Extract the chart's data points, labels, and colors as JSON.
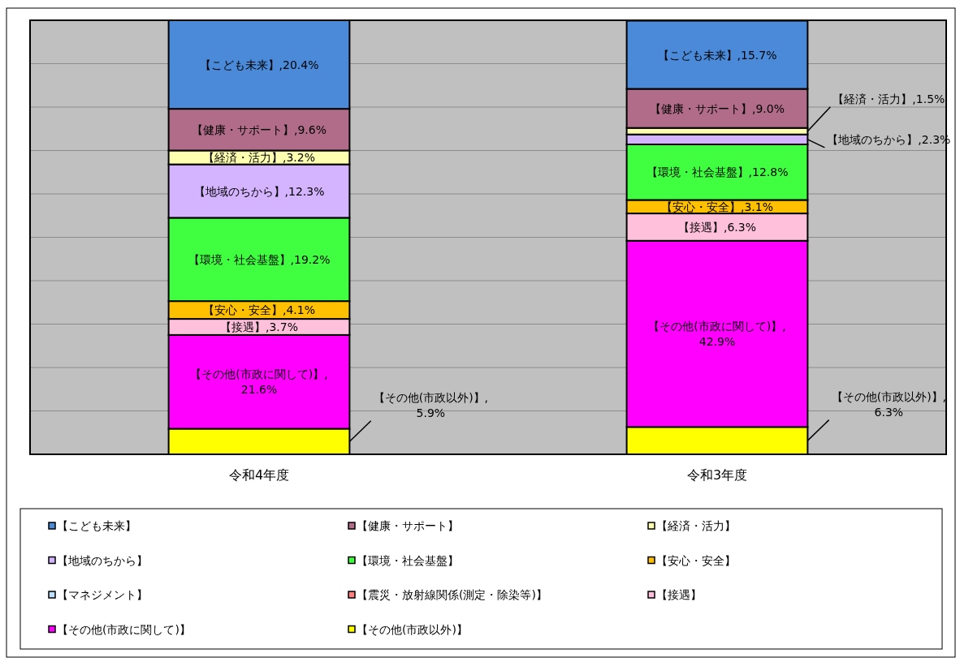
{
  "chart_data": {
    "type": "bar",
    "stacked": true,
    "categories": [
      "令和4年度",
      "令和3年度"
    ],
    "ylim": [
      0,
      100
    ],
    "yticks": [
      {
        "value": 0,
        "label": null
      },
      {
        "value": 10,
        "label": null
      },
      {
        "value": 20,
        "label": null
      },
      {
        "value": 30,
        "label": null
      },
      {
        "value": 40,
        "label": null
      },
      {
        "value": 50,
        "label": null
      },
      {
        "value": 60,
        "label": null
      },
      {
        "value": 70,
        "label": null
      },
      {
        "value": 80,
        "label": null
      },
      {
        "value": 90,
        "label": null
      },
      {
        "value": 100,
        "label": null
      }
    ],
    "grid": "y",
    "tick_labels": "x",
    "legend": "bottom",
    "series": [
      {
        "name": "【その他(市政以外)】",
        "color": "#ffff00",
        "values": [
          5.9,
          6.3
        ],
        "value_labels": [
          "【その他(市政以外)】,5.9%",
          "【その他(市政以外)】,6.3%"
        ]
      },
      {
        "name": "【その他(市政に関して)】",
        "color": "#ff00ff",
        "values": [
          21.6,
          42.9
        ],
        "value_labels": [
          "【その他(市政に関して)】,21.6%",
          "【その他(市政に関して)】,42.9%"
        ]
      },
      {
        "name": "【接遇】",
        "color": "#ffc0dc",
        "values": [
          3.7,
          6.3
        ],
        "value_labels": [
          "【接遇】,3.7%",
          "【接遇】,6.3%"
        ]
      },
      {
        "name": "【震災・放射線関係(測定・除染等)】",
        "color": "#ff8080",
        "values": [
          null,
          null
        ]
      },
      {
        "name": "【マネジメント】",
        "color": "#c0e0ff",
        "values": [
          null,
          null
        ]
      },
      {
        "name": "【安心・安全】",
        "color": "#ffc000",
        "values": [
          4.1,
          3.1
        ],
        "value_labels": [
          "【安心・安全】,4.1%",
          "【安心・安全】,3.1%"
        ]
      },
      {
        "name": "【環境・社会基盤】",
        "color": "#40ff40",
        "values": [
          19.2,
          12.8
        ],
        "value_labels": [
          "【環境・社会基盤】,19.2%",
          "【環境・社会基盤】,12.8%"
        ]
      },
      {
        "name": "【地域のちから】",
        "color": "#d4b4ff",
        "values": [
          12.3,
          2.3
        ],
        "value_labels": [
          "【地域のちから】,12.3%",
          "【地域のちから】,2.3%"
        ]
      },
      {
        "name": "【経済・活力】",
        "color": "#ffffb0",
        "values": [
          3.2,
          1.5
        ],
        "value_labels": [
          "【経済・活力】,3.2%",
          "【経済・活力】,1.5%"
        ]
      },
      {
        "name": "【健康・サポート】",
        "color": "#b06c88",
        "values": [
          9.6,
          9.0
        ],
        "value_labels": [
          "【健康・サポート】,9.6%",
          "【健康・サポート】,9.0%"
        ]
      },
      {
        "name": "【こども未来】",
        "color": "#4a8ad8",
        "values": [
          20.4,
          15.7
        ],
        "value_labels": [
          "【こども未来】,20.4%",
          "【こども未来】,15.7%"
        ]
      }
    ]
  }
}
